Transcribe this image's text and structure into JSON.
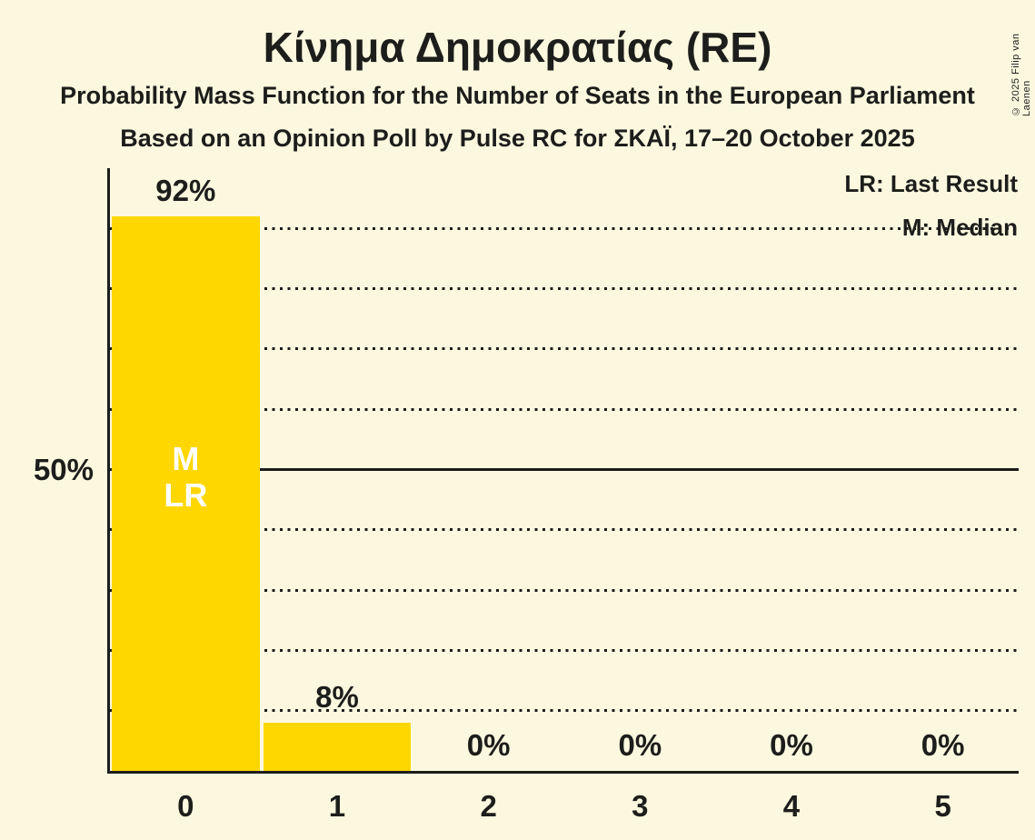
{
  "copyright": "© 2025 Filip van Laenen",
  "chart_data": {
    "type": "bar",
    "title": "Κίνημα Δημοκρατίας (RE)",
    "subtitle": "Probability Mass Function for the Number of Seats in the European Parliament",
    "subsubtitle": "Based on an Opinion Poll by Pulse RC for ΣΚΑΪ, 17–20 October 2025",
    "categories": [
      "0",
      "1",
      "2",
      "3",
      "4",
      "5"
    ],
    "values": [
      92,
      8,
      0,
      0,
      0,
      0
    ],
    "bar_labels": [
      "92%",
      "8%",
      "0%",
      "0%",
      "0%",
      "0%"
    ],
    "xlabel": "",
    "ylabel": "",
    "ylim": [
      0,
      100
    ],
    "grid": true,
    "gridlines_pct": [
      10,
      20,
      30,
      40,
      50,
      60,
      70,
      80,
      90
    ],
    "solid_line_pct": 50,
    "y_tick": {
      "value": 50,
      "label": "50%"
    },
    "legend_position": "top-right",
    "legend": [
      {
        "key": "LR",
        "label": "LR: Last Result"
      },
      {
        "key": "M",
        "label": "M: Median"
      }
    ],
    "annotations": {
      "bar_index": 0,
      "lines": [
        "M",
        "LR"
      ]
    },
    "colors": {
      "background": "#FCF8DF",
      "bar": "#FFD700",
      "text": "#1D1D1B",
      "annotation_text": "#FFFFFF"
    }
  }
}
